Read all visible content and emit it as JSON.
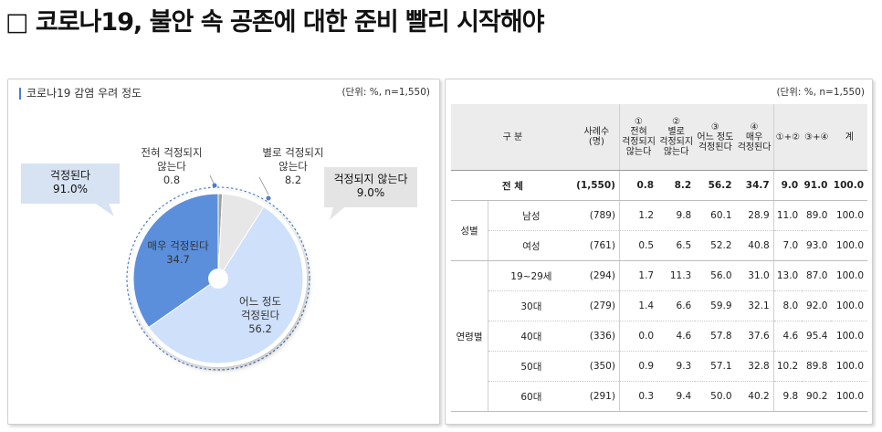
{
  "headline": "□ 코로나19, 불안 속 공존에 대한 준비 빨리 시작해야",
  "left_panel": {
    "title": "코로나19 감염 우려 정도",
    "unit": "(단위: %, n=1,550)",
    "callout_worry": {
      "label": "걱정된다",
      "value": "91.0%"
    },
    "callout_noworry": {
      "label": "걱정되지 않는다",
      "value": "9.0%"
    },
    "labels": {
      "not_at_all": {
        "l1": "전혀 걱정되지",
        "l2": "않는다",
        "value": "0.8"
      },
      "not_much": {
        "l1": "별로 걱정되지",
        "l2": "않는다",
        "value": "8.2"
      },
      "very": {
        "l1": "매우 걱정된다",
        "value": "34.7"
      },
      "somewhat": {
        "l1": "어느 정도",
        "l2": "걱정된다",
        "value": "56.2"
      }
    }
  },
  "chart_data": {
    "type": "pie",
    "title": "코로나19 감염 우려 정도",
    "slices": [
      {
        "name": "전혀 걱정되지 않는다",
        "value": 0.8,
        "color": "#a0a0a0"
      },
      {
        "name": "별로 걱정되지 않는다",
        "value": 8.2,
        "color": "#e7e7e7"
      },
      {
        "name": "어느 정도 걱정된다",
        "value": 56.2,
        "color": "#cfe0fb"
      },
      {
        "name": "매우 걱정된다",
        "value": 34.7,
        "color": "#5b8fdc"
      }
    ]
  },
  "right_panel": {
    "unit": "(단위: %, n=1,550)",
    "headers": {
      "category": "구  분",
      "n": [
        "사례수",
        "(명)"
      ],
      "c1": [
        "①",
        "전혀",
        "걱정되지",
        "않는다"
      ],
      "c2": [
        "②",
        "별로",
        "걱정되지",
        "않는다"
      ],
      "c3": [
        "③",
        "어느 정도",
        "걱정된다"
      ],
      "c4": [
        "④",
        "매우",
        "걱정된다"
      ],
      "c12": "①+②",
      "c34": "③+④",
      "total": "계"
    },
    "total_row": {
      "label": "전  체",
      "cells": [
        "(1,550)",
        "0.8",
        "8.2",
        "56.2",
        "34.7",
        "9.0",
        "91.0",
        "100.0"
      ]
    },
    "groups": [
      {
        "name": "성별",
        "rows": [
          {
            "label": "남성",
            "cells": [
              "(789)",
              "1.2",
              "9.8",
              "60.1",
              "28.9",
              "11.0",
              "89.0",
              "100.0"
            ]
          },
          {
            "label": "여성",
            "cells": [
              "(761)",
              "0.5",
              "6.5",
              "52.2",
              "40.8",
              "7.0",
              "93.0",
              "100.0"
            ]
          }
        ]
      },
      {
        "name": "연령별",
        "rows": [
          {
            "label": "19~29세",
            "cells": [
              "(294)",
              "1.7",
              "11.3",
              "56.0",
              "31.0",
              "13.0",
              "87.0",
              "100.0"
            ]
          },
          {
            "label": "30대",
            "cells": [
              "(279)",
              "1.4",
              "6.6",
              "59.9",
              "32.1",
              "8.0",
              "92.0",
              "100.0"
            ]
          },
          {
            "label": "40대",
            "cells": [
              "(336)",
              "0.0",
              "4.6",
              "57.8",
              "37.6",
              "4.6",
              "95.4",
              "100.0"
            ]
          },
          {
            "label": "50대",
            "cells": [
              "(350)",
              "0.9",
              "9.3",
              "57.1",
              "32.8",
              "10.2",
              "89.8",
              "100.0"
            ]
          },
          {
            "label": "60대",
            "cells": [
              "(291)",
              "0.3",
              "9.4",
              "50.0",
              "40.2",
              "9.8",
              "90.2",
              "100.0"
            ]
          }
        ]
      }
    ]
  }
}
